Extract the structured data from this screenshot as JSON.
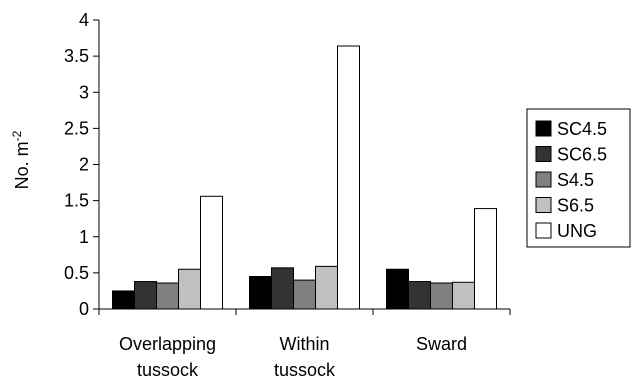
{
  "chart_data": {
    "type": "bar",
    "categories": [
      [
        "Overlapping",
        "tussock"
      ],
      [
        "Within",
        "tussock"
      ],
      [
        "Sward"
      ]
    ],
    "series": [
      {
        "name": "SC4.5",
        "color": "#000000",
        "values": [
          0.25,
          0.45,
          0.55
        ]
      },
      {
        "name": "SC6.5",
        "color": "#333333",
        "values": [
          0.38,
          0.57,
          0.38
        ]
      },
      {
        "name": "S4.5",
        "color": "#808080",
        "values": [
          0.36,
          0.4,
          0.36
        ]
      },
      {
        "name": "S6.5",
        "color": "#c0c0c0",
        "values": [
          0.55,
          0.59,
          0.37
        ]
      },
      {
        "name": "UNG",
        "color": "#ffffff",
        "values": [
          1.56,
          3.64,
          1.39
        ]
      }
    ],
    "ylabel": "No. m",
    "ylabel_superscript": "-2",
    "ylim": [
      0,
      4
    ],
    "yticks": [
      "0",
      "0.5",
      "1",
      "1.5",
      "2",
      "2.5",
      "3",
      "3.5",
      "4"
    ],
    "legend_position": "right",
    "grid": false
  }
}
